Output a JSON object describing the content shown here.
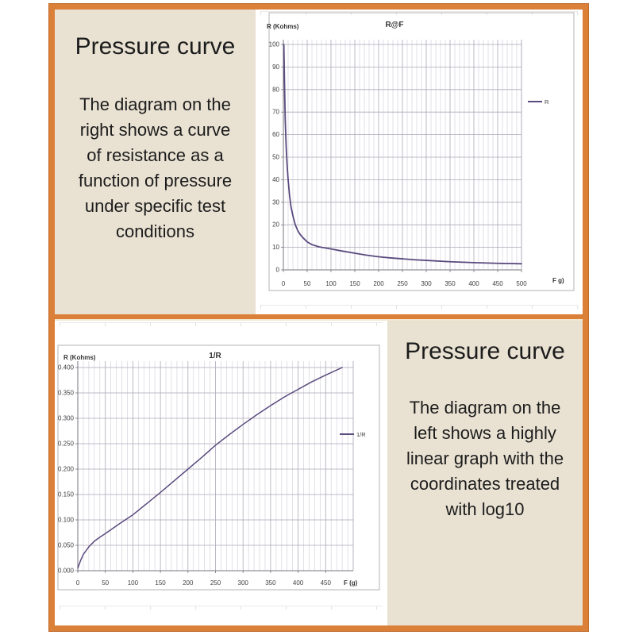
{
  "text_panels": {
    "top": {
      "title": "Pressure curve",
      "body": "The diagram on the\nright shows a curve\nof resistance as a\nfunction of pressure\nunder specific test\nconditions"
    },
    "bottom": {
      "title": "Pressure curve",
      "body": "The diagram on the\nleft shows a highly\nlinear graph with the\ncoordinates treated\nwith log10"
    }
  },
  "colors": {
    "frame_orange": "#db8038",
    "panel_beige": "#e9e2d3",
    "curve_purple": "#5a4a7e",
    "grid_minor": "#d6d4de",
    "grid_major": "#aba9b6",
    "axis_line": "#76747e",
    "chart_border": "#b3b3b3",
    "tick_text": "#3f3d42",
    "label_text": "#333333"
  },
  "chart_data": [
    {
      "type": "line",
      "title": "R@F",
      "ylabel": "R (Kohms)",
      "xlabel": "F g)",
      "legend": "R",
      "legend_position": "right",
      "grid": true,
      "xlim": [
        0,
        500
      ],
      "ylim": [
        0,
        100
      ],
      "x_minor_step": 10,
      "xtick_values": [
        0,
        50,
        100,
        150,
        200,
        250,
        300,
        350,
        400,
        450,
        500
      ],
      "xtick_labels": [
        "0",
        "50",
        "100",
        "150",
        "200",
        "250",
        "300",
        "350",
        "400",
        "450",
        "500"
      ],
      "ytick_values": [
        0,
        10,
        20,
        30,
        40,
        50,
        60,
        70,
        80,
        90,
        100
      ],
      "ytick_labels": [
        "0",
        "10",
        "20",
        "30",
        "40",
        "50",
        "60",
        "70",
        "80",
        "90",
        "100"
      ],
      "series": [
        {
          "name": "R",
          "points": [
            [
              1,
              100
            ],
            [
              2,
              88
            ],
            [
              3,
              76
            ],
            [
              4,
              66
            ],
            [
              6,
              54
            ],
            [
              8,
              46
            ],
            [
              10,
              40
            ],
            [
              13,
              33
            ],
            [
              16,
              28
            ],
            [
              20,
              24
            ],
            [
              25,
              20
            ],
            [
              30,
              17.5
            ],
            [
              35,
              15.8
            ],
            [
              40,
              14.5
            ],
            [
              50,
              12.4
            ],
            [
              60,
              11.2
            ],
            [
              75,
              10.2
            ],
            [
              100,
              9.3
            ],
            [
              125,
              8.3
            ],
            [
              150,
              7.4
            ],
            [
              175,
              6.5
            ],
            [
              200,
              5.8
            ],
            [
              225,
              5.3
            ],
            [
              250,
              4.9
            ],
            [
              275,
              4.5
            ],
            [
              300,
              4.2
            ],
            [
              350,
              3.6
            ],
            [
              400,
              3.2
            ],
            [
              450,
              2.9
            ],
            [
              500,
              2.7
            ]
          ]
        }
      ]
    },
    {
      "type": "line",
      "title": "1/R",
      "ylabel": "R (Kohms)",
      "xlabel": "F (g)",
      "legend": "1/R",
      "legend_position": "right",
      "grid": true,
      "xlim": [
        0,
        500
      ],
      "ylim": [
        0,
        0.4
      ],
      "x_minor_step": 10,
      "xtick_values": [
        0,
        50,
        100,
        150,
        200,
        250,
        300,
        350,
        400,
        450
      ],
      "xtick_labels": [
        "0",
        "50",
        "100",
        "150",
        "200",
        "250",
        "300",
        "350",
        "400",
        "450"
      ],
      "ytick_values": [
        0,
        0.05,
        0.1,
        0.15,
        0.2,
        0.25,
        0.3,
        0.35,
        0.4
      ],
      "ytick_labels": [
        "0.000",
        "0.050",
        "0.100",
        "0.150",
        "0.200",
        "0.250",
        "0.300",
        "0.350",
        "0.400"
      ],
      "series": [
        {
          "name": "1/R",
          "points": [
            [
              0,
              0.005
            ],
            [
              5,
              0.02
            ],
            [
              10,
              0.032
            ],
            [
              20,
              0.047
            ],
            [
              30,
              0.058
            ],
            [
              40,
              0.066
            ],
            [
              50,
              0.073
            ],
            [
              75,
              0.092
            ],
            [
              100,
              0.11
            ],
            [
              125,
              0.132
            ],
            [
              150,
              0.154
            ],
            [
              175,
              0.177
            ],
            [
              200,
              0.2
            ],
            [
              225,
              0.223
            ],
            [
              250,
              0.247
            ],
            [
              275,
              0.268
            ],
            [
              300,
              0.288
            ],
            [
              325,
              0.307
            ],
            [
              350,
              0.325
            ],
            [
              375,
              0.342
            ],
            [
              400,
              0.357
            ],
            [
              425,
              0.372
            ],
            [
              450,
              0.385
            ],
            [
              480,
              0.4
            ]
          ]
        }
      ]
    }
  ]
}
